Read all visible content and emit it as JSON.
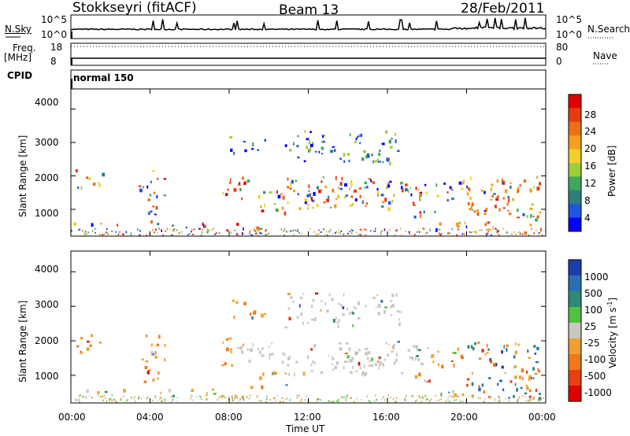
{
  "header": {
    "station": "Stokkseyri (fitACF)",
    "beam": "Beam 13",
    "date": "28/Feb/2011"
  },
  "strip": {
    "nsky_label": "N.Sky",
    "nsky_ticks": [
      "10^5",
      "10^0"
    ],
    "nsearch_label": "N.Search",
    "nsearch_ticks": [
      "10^5",
      "10^0"
    ],
    "freq_label": "Freq.",
    "freq_unit": "[MHz]",
    "freq_ticks": [
      "18",
      "8"
    ],
    "nave_label": "Nave",
    "nave_ticks": [
      "80",
      "0"
    ],
    "cpid_label": "CPID",
    "cpid_value": "normal 150"
  },
  "chart_data": [
    {
      "type": "heatmap",
      "panel": "power",
      "xlabel": "Time UT",
      "ylabel": "Slant Range [km]",
      "x_ticks": [
        "00:00",
        "04:00",
        "08:00",
        "12:00",
        "16:00",
        "20:00",
        "00:00"
      ],
      "y_ticks": [
        "1000",
        "2000",
        "3000",
        "4000"
      ],
      "x_range_hours": [
        0,
        24
      ],
      "y_range_km": [
        200,
        4600
      ],
      "colorbar_label": "Power [dB]",
      "colorbar_ticks": [
        "4",
        "8",
        "12",
        "16",
        "20",
        "24",
        "28"
      ],
      "colorbar_colors": [
        "#0000ff",
        "#2255dd",
        "#2f7f7f",
        "#3fa85a",
        "#9fcc3a",
        "#f2d02a",
        "#f6a020",
        "#ee7014",
        "#e83c10",
        "#e00000"
      ]
    },
    {
      "type": "heatmap",
      "panel": "velocity",
      "xlabel": "Time UT",
      "ylabel": "Slant Range [km]",
      "x_ticks": [
        "00:00",
        "04:00",
        "08:00",
        "12:00",
        "16:00",
        "20:00",
        "00:00"
      ],
      "y_ticks": [
        "1000",
        "2000",
        "3000",
        "4000"
      ],
      "x_range_hours": [
        0,
        24
      ],
      "y_range_km": [
        200,
        4600
      ],
      "colorbar_label": "Velocity [m s",
      "colorbar_label_sup": "-1",
      "colorbar_label_end": "]",
      "colorbar_ticks": [
        "1000",
        "500",
        "100",
        "25",
        "-25",
        "-100",
        "-500",
        "-1000"
      ],
      "colorbar_colors": [
        "#1a3ea8",
        "#2a6fb0",
        "#2f8a74",
        "#52c040",
        "#c8c8c0",
        "#f0a030",
        "#f07818",
        "#e84010",
        "#e00000"
      ]
    }
  ],
  "patches": [
    {
      "t0": 0.2,
      "t1": 1.6,
      "r0": 1650,
      "r1": 2250
    },
    {
      "t0": 0.1,
      "t1": 3.2,
      "r0": 500,
      "r1": 620
    },
    {
      "t0": 3.4,
      "t1": 4.8,
      "r0": 1400,
      "r1": 2200
    },
    {
      "t0": 3.6,
      "t1": 4.4,
      "r0": 600,
      "r1": 1350
    },
    {
      "t0": 4.2,
      "t1": 8.5,
      "r0": 400,
      "r1": 620
    },
    {
      "t0": 7.6,
      "t1": 8.8,
      "r0": 1300,
      "r1": 2100
    },
    {
      "t0": 8.5,
      "t1": 18.0,
      "r0": 1400,
      "r1": 2000
    },
    {
      "t0": 8.0,
      "t1": 9.8,
      "r0": 2700,
      "r1": 3200
    },
    {
      "t0": 10.8,
      "t1": 16.6,
      "r0": 2400,
      "r1": 3400
    },
    {
      "t0": 9.5,
      "t1": 10.9,
      "r0": 700,
      "r1": 1200
    },
    {
      "t0": 8.6,
      "t1": 9.6,
      "r0": 400,
      "r1": 700
    },
    {
      "t0": 10.9,
      "t1": 17.8,
      "r0": 1050,
      "r1": 1700
    },
    {
      "t0": 17.2,
      "t1": 18.8,
      "r0": 800,
      "r1": 1100
    },
    {
      "t0": 18.0,
      "t1": 20.0,
      "r0": 1300,
      "r1": 1900
    },
    {
      "t0": 18.2,
      "t1": 20.2,
      "r0": 400,
      "r1": 650
    },
    {
      "t0": 19.8,
      "t1": 23.8,
      "r0": 300,
      "r1": 2000
    }
  ]
}
